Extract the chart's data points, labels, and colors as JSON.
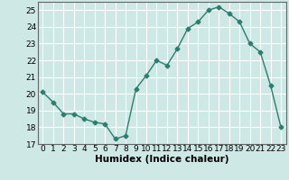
{
  "x": [
    0,
    1,
    2,
    3,
    4,
    5,
    6,
    7,
    8,
    9,
    10,
    11,
    12,
    13,
    14,
    15,
    16,
    17,
    18,
    19,
    20,
    21,
    22,
    23
  ],
  "y": [
    20.1,
    19.5,
    18.8,
    18.8,
    18.5,
    18.3,
    18.2,
    17.3,
    17.5,
    20.3,
    21.1,
    22.0,
    21.7,
    22.7,
    23.9,
    24.3,
    25.0,
    25.2,
    24.8,
    24.3,
    23.0,
    22.5,
    20.5,
    18.0
  ],
  "line_color": "#2e7d6e",
  "marker": "D",
  "markersize": 2.5,
  "linewidth": 1.0,
  "xlabel": "Humidex (Indice chaleur)",
  "ylim": [
    17,
    25.5
  ],
  "yticks": [
    17,
    18,
    19,
    20,
    21,
    22,
    23,
    24,
    25
  ],
  "xticks": [
    0,
    1,
    2,
    3,
    4,
    5,
    6,
    7,
    8,
    9,
    10,
    11,
    12,
    13,
    14,
    15,
    16,
    17,
    18,
    19,
    20,
    21,
    22,
    23
  ],
  "background_color": "#cde8e5",
  "grid_color": "#ffffff",
  "tick_fontsize": 6.5,
  "xlabel_fontsize": 7.5
}
